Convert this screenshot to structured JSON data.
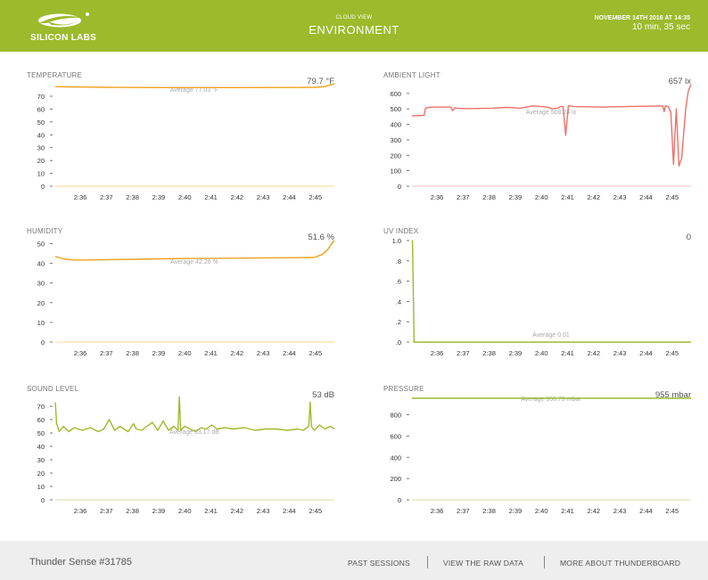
{
  "header": {
    "brand": "SILICON LABS",
    "view_label": "CLOUD VIEW",
    "view_title": "ENVIRONMENT",
    "date": "NOVEMBER 14TH 2016 AT 14:35",
    "duration": "10 min, 35 sec",
    "bg_color": "#9cba2b"
  },
  "x_ticks": [
    "2:36",
    "2:37",
    "2:38",
    "2:39",
    "2:40",
    "2:41",
    "2:42",
    "2:43",
    "2:44",
    "2:45"
  ],
  "chart_data": [
    {
      "type": "line",
      "title": "TEMPERATURE",
      "current": "79.7 °F",
      "average": "Average 77.03 °F",
      "color": "#f0a01e",
      "y_ticks": [
        "0",
        "10",
        "20",
        "30",
        "40",
        "50",
        "60",
        "70"
      ],
      "ylim": [
        0,
        79
      ],
      "x": [
        0,
        0.5,
        1,
        2,
        3,
        4,
        5,
        6,
        7,
        8,
        9,
        9.6,
        10,
        10.2,
        10.35
      ],
      "y": [
        77.5,
        77.3,
        77.1,
        76.9,
        76.8,
        76.7,
        76.7,
        76.7,
        76.7,
        76.8,
        76.8,
        76.9,
        77.5,
        78.8,
        79.7
      ]
    },
    {
      "type": "line",
      "title": "AMBIENT LIGHT",
      "current": "657 lx",
      "average": "Average 508.24 lx",
      "color": "#f07068",
      "y_ticks": [
        "0",
        "100",
        "200",
        "300",
        "400",
        "500",
        "600"
      ],
      "ylim": [
        0,
        657
      ],
      "x": [
        0,
        0.45,
        0.5,
        0.7,
        1.45,
        1.5,
        1.6,
        1.65,
        2,
        3,
        3.5,
        4,
        4.5,
        5,
        5.2,
        5.4,
        5.45,
        5.5,
        5.6,
        5.7,
        5.8,
        6,
        7,
        8,
        9,
        9.3,
        9.35,
        9.4,
        9.5,
        9.6,
        9.7,
        9.8,
        9.9,
        10.0,
        10.15,
        10.25,
        10.35
      ],
      "y": [
        455,
        458,
        505,
        512,
        512,
        488,
        507,
        505,
        502,
        505,
        510,
        505,
        520,
        512,
        502,
        505,
        508,
        515,
        515,
        330,
        520,
        515,
        512,
        515,
        518,
        520,
        482,
        520,
        515,
        480,
        140,
        500,
        130,
        180,
        500,
        620,
        657
      ]
    },
    {
      "type": "line",
      "title": "HUMIDITY",
      "current": "51.6 %",
      "average": "Average 42.26 %",
      "color": "#f0a01e",
      "y_ticks": [
        "0",
        "10",
        "20",
        "30",
        "40",
        "50"
      ],
      "ylim": [
        0,
        51.6
      ],
      "x": [
        0,
        0.3,
        0.6,
        1,
        2,
        3,
        4,
        5,
        6,
        7,
        8,
        9,
        9.6,
        9.9,
        10.1,
        10.25,
        10.35
      ],
      "y": [
        43.5,
        42.3,
        41.8,
        41.7,
        41.9,
        42.1,
        42.3,
        42.5,
        42.6,
        42.7,
        42.8,
        42.9,
        43,
        44.5,
        47,
        50,
        51.6
      ]
    },
    {
      "type": "line",
      "title": "UV INDEX",
      "current": "0",
      "average": "Average 0.01",
      "color": "#9cba2b",
      "y_ticks": [
        ".0",
        ".2",
        ".4",
        ".6",
        ".8",
        "1.0"
      ],
      "ylim": [
        0,
        1.0
      ],
      "x": [
        0,
        0.02,
        0.08,
        1,
        5,
        10.35
      ],
      "y": [
        1.0,
        1.0,
        0,
        0,
        0,
        0
      ]
    },
    {
      "type": "line",
      "title": "SOUND LEVEL",
      "current": "53 dB",
      "average": "Average 53.17 dB",
      "color": "#9cba2b",
      "y_ticks": [
        "0",
        "10",
        "20",
        "30",
        "40",
        "50",
        "60",
        "70"
      ],
      "ylim": [
        0,
        76
      ],
      "x": [
        0,
        0.05,
        0.15,
        0.3,
        0.5,
        0.7,
        1,
        1.3,
        1.6,
        1.8,
        2,
        2.2,
        2.4,
        2.7,
        2.9,
        3,
        3.2,
        3.4,
        3.6,
        3.8,
        4,
        4.2,
        4.4,
        4.55,
        4.6,
        4.65,
        4.8,
        5,
        5.2,
        5.4,
        5.6,
        5.8,
        6,
        6.3,
        6.6,
        7,
        7.4,
        7.8,
        8.2,
        8.6,
        9,
        9.2,
        9.4,
        9.45,
        9.5,
        9.6,
        9.8,
        10,
        10.2,
        10.35
      ],
      "y": [
        73,
        57,
        51,
        55,
        51,
        54,
        52,
        54,
        51,
        53,
        60,
        52,
        55,
        51,
        57,
        53,
        52,
        55,
        58,
        52,
        59,
        52,
        55,
        52,
        77,
        52,
        55,
        53,
        51,
        54,
        53,
        56,
        53,
        54,
        53,
        54,
        52,
        53,
        53,
        52,
        53,
        52,
        55,
        73,
        55,
        52,
        56,
        53,
        55,
        53
      ]
    },
    {
      "type": "line",
      "title": "PRESSURE",
      "current": "955 mbar",
      "average": "Average 956.79 mbar",
      "color": "#9cba2b",
      "y_ticks": [
        "0",
        "200",
        "400",
        "600",
        "800"
      ],
      "ylim": [
        0,
        955
      ],
      "x": [
        0,
        2,
        4,
        6,
        8,
        10.35
      ],
      "y": [
        955,
        955,
        955,
        955,
        955,
        955
      ]
    }
  ],
  "footer": {
    "device": "Thunder Sense #31785",
    "links": [
      "PAST SESSIONS",
      "VIEW THE RAW DATA",
      "MORE ABOUT THUNDERBOARD"
    ]
  }
}
